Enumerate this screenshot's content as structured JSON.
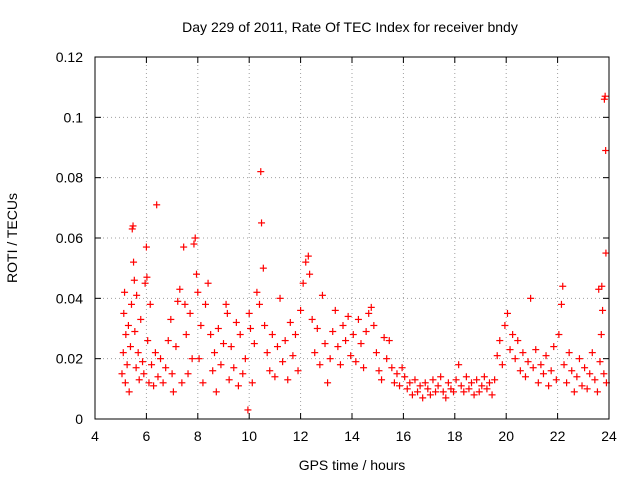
{
  "chart_data": {
    "type": "scatter",
    "title": "Day 229 of 2011, Rate Of TEC Index for receiver bndy",
    "xlabel": "GPS time / hours",
    "ylabel": "ROTI / TECUs",
    "xlim": [
      4,
      24
    ],
    "ylim": [
      0,
      0.12
    ],
    "xticks": [
      4,
      6,
      8,
      10,
      12,
      14,
      16,
      18,
      20,
      22,
      24
    ],
    "yticks": [
      0,
      0.02,
      0.04,
      0.06,
      0.08,
      0.1,
      0.12
    ],
    "ytick_labels": [
      "0",
      "0.02",
      "0.04",
      "0.06",
      "0.08",
      "0.1",
      "0.12"
    ],
    "grid": true,
    "marker": "plus",
    "color": "#ff0000",
    "series": [
      {
        "points": [
          [
            5.05,
            0.015
          ],
          [
            5.1,
            0.022
          ],
          [
            5.12,
            0.035
          ],
          [
            5.15,
            0.042
          ],
          [
            5.18,
            0.012
          ],
          [
            5.2,
            0.028
          ],
          [
            5.25,
            0.018
          ],
          [
            5.3,
            0.031
          ],
          [
            5.33,
            0.009
          ],
          [
            5.38,
            0.024
          ],
          [
            5.42,
            0.038
          ],
          [
            5.45,
            0.063
          ],
          [
            5.48,
            0.064
          ],
          [
            5.5,
            0.052
          ],
          [
            5.53,
            0.046
          ],
          [
            5.55,
            0.029
          ],
          [
            5.6,
            0.017
          ],
          [
            5.62,
            0.041
          ],
          [
            5.68,
            0.022
          ],
          [
            5.72,
            0.013
          ],
          [
            5.78,
            0.033
          ],
          [
            5.85,
            0.019
          ],
          [
            5.9,
            0.015
          ],
          [
            5.95,
            0.045
          ],
          [
            6.0,
            0.057
          ],
          [
            6.02,
            0.047
          ],
          [
            6.05,
            0.026
          ],
          [
            6.1,
            0.012
          ],
          [
            6.15,
            0.038
          ],
          [
            6.2,
            0.018
          ],
          [
            6.28,
            0.011
          ],
          [
            6.35,
            0.022
          ],
          [
            6.4,
            0.071
          ],
          [
            6.45,
            0.014
          ],
          [
            6.55,
            0.02
          ],
          [
            6.65,
            0.012
          ],
          [
            6.75,
            0.017
          ],
          [
            6.85,
            0.026
          ],
          [
            6.95,
            0.033
          ],
          [
            7.0,
            0.015
          ],
          [
            7.05,
            0.009
          ],
          [
            7.15,
            0.024
          ],
          [
            7.22,
            0.039
          ],
          [
            7.3,
            0.043
          ],
          [
            7.38,
            0.012
          ],
          [
            7.45,
            0.057
          ],
          [
            7.5,
            0.038
          ],
          [
            7.55,
            0.028
          ],
          [
            7.62,
            0.015
          ],
          [
            7.7,
            0.035
          ],
          [
            7.78,
            0.02
          ],
          [
            7.85,
            0.058
          ],
          [
            7.9,
            0.06
          ],
          [
            7.95,
            0.048
          ],
          [
            8.0,
            0.042
          ],
          [
            8.05,
            0.02
          ],
          [
            8.12,
            0.031
          ],
          [
            8.2,
            0.012
          ],
          [
            8.3,
            0.038
          ],
          [
            8.4,
            0.045
          ],
          [
            8.5,
            0.028
          ],
          [
            8.58,
            0.016
          ],
          [
            8.65,
            0.022
          ],
          [
            8.72,
            0.009
          ],
          [
            8.8,
            0.03
          ],
          [
            8.9,
            0.018
          ],
          [
            9.0,
            0.025
          ],
          [
            9.1,
            0.038
          ],
          [
            9.15,
            0.035
          ],
          [
            9.22,
            0.013
          ],
          [
            9.3,
            0.024
          ],
          [
            9.4,
            0.017
          ],
          [
            9.5,
            0.032
          ],
          [
            9.58,
            0.011
          ],
          [
            9.65,
            0.028
          ],
          [
            9.75,
            0.015
          ],
          [
            9.85,
            0.02
          ],
          [
            9.95,
            0.003
          ],
          [
            10.0,
            0.035
          ],
          [
            10.05,
            0.03
          ],
          [
            10.12,
            0.012
          ],
          [
            10.2,
            0.025
          ],
          [
            10.3,
            0.042
          ],
          [
            10.4,
            0.038
          ],
          [
            10.45,
            0.082
          ],
          [
            10.48,
            0.065
          ],
          [
            10.55,
            0.05
          ],
          [
            10.6,
            0.031
          ],
          [
            10.7,
            0.022
          ],
          [
            10.8,
            0.016
          ],
          [
            10.9,
            0.028
          ],
          [
            11.0,
            0.014
          ],
          [
            11.1,
            0.024
          ],
          [
            11.2,
            0.04
          ],
          [
            11.3,
            0.019
          ],
          [
            11.4,
            0.026
          ],
          [
            11.5,
            0.013
          ],
          [
            11.6,
            0.032
          ],
          [
            11.7,
            0.021
          ],
          [
            11.8,
            0.028
          ],
          [
            11.9,
            0.016
          ],
          [
            12.0,
            0.036
          ],
          [
            12.1,
            0.045
          ],
          [
            12.2,
            0.052
          ],
          [
            12.3,
            0.054
          ],
          [
            12.35,
            0.048
          ],
          [
            12.45,
            0.033
          ],
          [
            12.55,
            0.022
          ],
          [
            12.65,
            0.03
          ],
          [
            12.75,
            0.018
          ],
          [
            12.85,
            0.041
          ],
          [
            12.95,
            0.025
          ],
          [
            13.05,
            0.012
          ],
          [
            13.15,
            0.02
          ],
          [
            13.25,
            0.029
          ],
          [
            13.35,
            0.036
          ],
          [
            13.45,
            0.024
          ],
          [
            13.55,
            0.018
          ],
          [
            13.65,
            0.031
          ],
          [
            13.75,
            0.026
          ],
          [
            13.85,
            0.034
          ],
          [
            13.95,
            0.021
          ],
          [
            14.05,
            0.028
          ],
          [
            14.15,
            0.019
          ],
          [
            14.25,
            0.033
          ],
          [
            14.35,
            0.025
          ],
          [
            14.45,
            0.017
          ],
          [
            14.55,
            0.029
          ],
          [
            14.65,
            0.035
          ],
          [
            14.75,
            0.037
          ],
          [
            14.85,
            0.031
          ],
          [
            14.95,
            0.022
          ],
          [
            15.05,
            0.016
          ],
          [
            15.15,
            0.013
          ],
          [
            15.25,
            0.027
          ],
          [
            15.35,
            0.02
          ],
          [
            15.45,
            0.026
          ],
          [
            15.55,
            0.017
          ],
          [
            15.65,
            0.012
          ],
          [
            15.75,
            0.015
          ],
          [
            15.85,
            0.011
          ],
          [
            15.95,
            0.017
          ],
          [
            16.05,
            0.014
          ],
          [
            16.15,
            0.01
          ],
          [
            16.25,
            0.012
          ],
          [
            16.35,
            0.008
          ],
          [
            16.45,
            0.013
          ],
          [
            16.55,
            0.009
          ],
          [
            16.65,
            0.011
          ],
          [
            16.75,
            0.007
          ],
          [
            16.85,
            0.012
          ],
          [
            16.95,
            0.01
          ],
          [
            17.05,
            0.008
          ],
          [
            17.15,
            0.013
          ],
          [
            17.25,
            0.009
          ],
          [
            17.35,
            0.011
          ],
          [
            17.45,
            0.014
          ],
          [
            17.55,
            0.009
          ],
          [
            17.65,
            0.007
          ],
          [
            17.75,
            0.012
          ],
          [
            17.85,
            0.01
          ],
          [
            17.95,
            0.009
          ],
          [
            18.05,
            0.013
          ],
          [
            18.15,
            0.018
          ],
          [
            18.25,
            0.011
          ],
          [
            18.35,
            0.009
          ],
          [
            18.45,
            0.014
          ],
          [
            18.55,
            0.01
          ],
          [
            18.65,
            0.012
          ],
          [
            18.75,
            0.008
          ],
          [
            18.85,
            0.013
          ],
          [
            18.95,
            0.009
          ],
          [
            19.05,
            0.011
          ],
          [
            19.15,
            0.014
          ],
          [
            19.25,
            0.01
          ],
          [
            19.35,
            0.012
          ],
          [
            19.45,
            0.008
          ],
          [
            19.55,
            0.013
          ],
          [
            19.65,
            0.021
          ],
          [
            19.75,
            0.026
          ],
          [
            19.85,
            0.018
          ],
          [
            19.95,
            0.031
          ],
          [
            20.05,
            0.035
          ],
          [
            20.15,
            0.023
          ],
          [
            20.25,
            0.028
          ],
          [
            20.35,
            0.02
          ],
          [
            20.45,
            0.026
          ],
          [
            20.55,
            0.016
          ],
          [
            20.65,
            0.022
          ],
          [
            20.75,
            0.014
          ],
          [
            20.85,
            0.019
          ],
          [
            20.95,
            0.04
          ],
          [
            21.05,
            0.017
          ],
          [
            21.15,
            0.023
          ],
          [
            21.25,
            0.012
          ],
          [
            21.35,
            0.018
          ],
          [
            21.45,
            0.015
          ],
          [
            21.55,
            0.021
          ],
          [
            21.65,
            0.011
          ],
          [
            21.75,
            0.016
          ],
          [
            21.85,
            0.024
          ],
          [
            21.95,
            0.013
          ],
          [
            22.05,
            0.028
          ],
          [
            22.15,
            0.038
          ],
          [
            22.2,
            0.044
          ],
          [
            22.25,
            0.018
          ],
          [
            22.35,
            0.012
          ],
          [
            22.45,
            0.022
          ],
          [
            22.55,
            0.016
          ],
          [
            22.65,
            0.009
          ],
          [
            22.75,
            0.014
          ],
          [
            22.85,
            0.02
          ],
          [
            22.95,
            0.011
          ],
          [
            23.05,
            0.017
          ],
          [
            23.15,
            0.01
          ],
          [
            23.25,
            0.015
          ],
          [
            23.35,
            0.022
          ],
          [
            23.45,
            0.013
          ],
          [
            23.55,
            0.009
          ],
          [
            23.6,
            0.043
          ],
          [
            23.65,
            0.019
          ],
          [
            23.7,
            0.028
          ],
          [
            23.72,
            0.044
          ],
          [
            23.75,
            0.036
          ],
          [
            23.8,
            0.015
          ],
          [
            23.82,
            0.106
          ],
          [
            23.85,
            0.107
          ],
          [
            23.87,
            0.089
          ],
          [
            23.88,
            0.055
          ],
          [
            23.9,
            0.012
          ]
        ]
      }
    ]
  }
}
